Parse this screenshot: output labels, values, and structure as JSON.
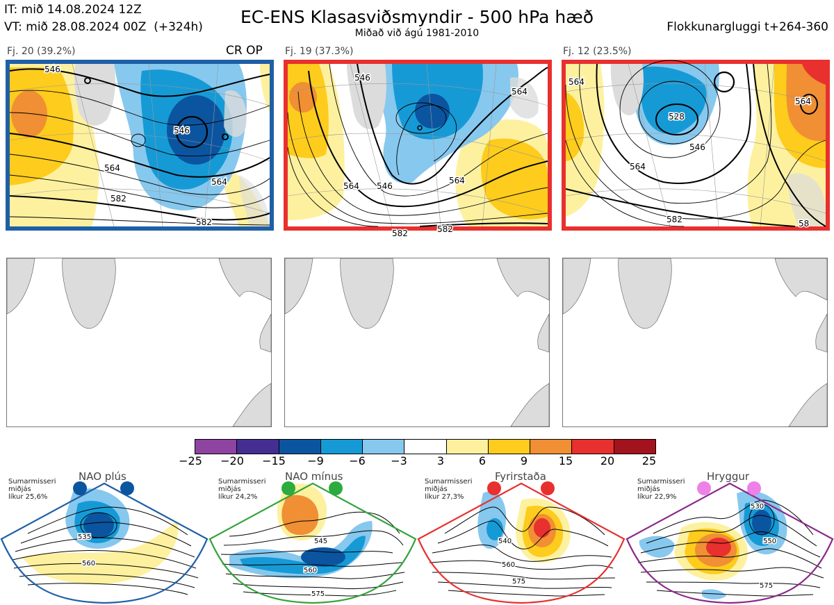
{
  "header": {
    "it": "IT: mið 14.08.2024 12Z",
    "vt": "VT: mið 28.08.2024 00Z  (+324h)",
    "title": "EC-ENS Klasasviðsmyndir - 500 hPa hæð",
    "subtitle": "Miðað við ágú 1981-2010",
    "window": "Flokkunargluggi t+264-360"
  },
  "clusters": [
    {
      "label": "Fj. 20 (39.2%)",
      "tag": "CR OP",
      "border": "#1f5fa6",
      "contours": [
        "546",
        "546",
        "564",
        "564",
        "582",
        "582"
      ]
    },
    {
      "label": "Fj. 19 (37.3%)",
      "tag": "",
      "border": "#e8302e",
      "contours": [
        "546",
        "546",
        "564",
        "564",
        "564",
        "582",
        "582"
      ]
    },
    {
      "label": "Fj. 12 (23.5%)",
      "tag": "",
      "border": "#e8302e",
      "contours": [
        "564",
        "528",
        "546",
        "564",
        "564",
        "582",
        "58"
      ]
    }
  ],
  "colorbar": {
    "colors": [
      "#8e44a0",
      "#452e91",
      "#0b55a0",
      "#169ad6",
      "#87c8ee",
      "#ffffff",
      "#fdf1a0",
      "#fdcc1c",
      "#f08f34",
      "#e8302e",
      "#a3131d"
    ],
    "labels": [
      "−25",
      "−20",
      "−15",
      "−9",
      "−6",
      "−3",
      "3",
      "6",
      "9",
      "15",
      "20",
      "25"
    ]
  },
  "regimes": [
    {
      "name": "NAO plús",
      "desc": "Sumarmisseri\nmiðjás\nlíkur 25,6%",
      "border": "#1f5fa6",
      "dot": "#0b55a0",
      "contours": [
        "535",
        "560"
      ]
    },
    {
      "name": "NAO mínus",
      "desc": "Sumarmisseri\nmiðjás\nlíkur 24,2%",
      "border": "#34a33c",
      "dot": "#2cab3e",
      "contours": [
        "545",
        "560",
        "575"
      ]
    },
    {
      "name": "Fyrirstaða",
      "desc": "Sumarmisseri\nmiðjás\nlíkur 27,3%",
      "border": "#e8302e",
      "dot": "#e8302e",
      "contours": [
        "540",
        "560",
        "575"
      ]
    },
    {
      "name": "Hryggur",
      "desc": "Sumarmisseri\nmiðjás\nlíkur 22,9%",
      "border": "#8a2a8c",
      "dot": "#ee80e8",
      "contours": [
        "530",
        "550",
        "575"
      ]
    }
  ]
}
